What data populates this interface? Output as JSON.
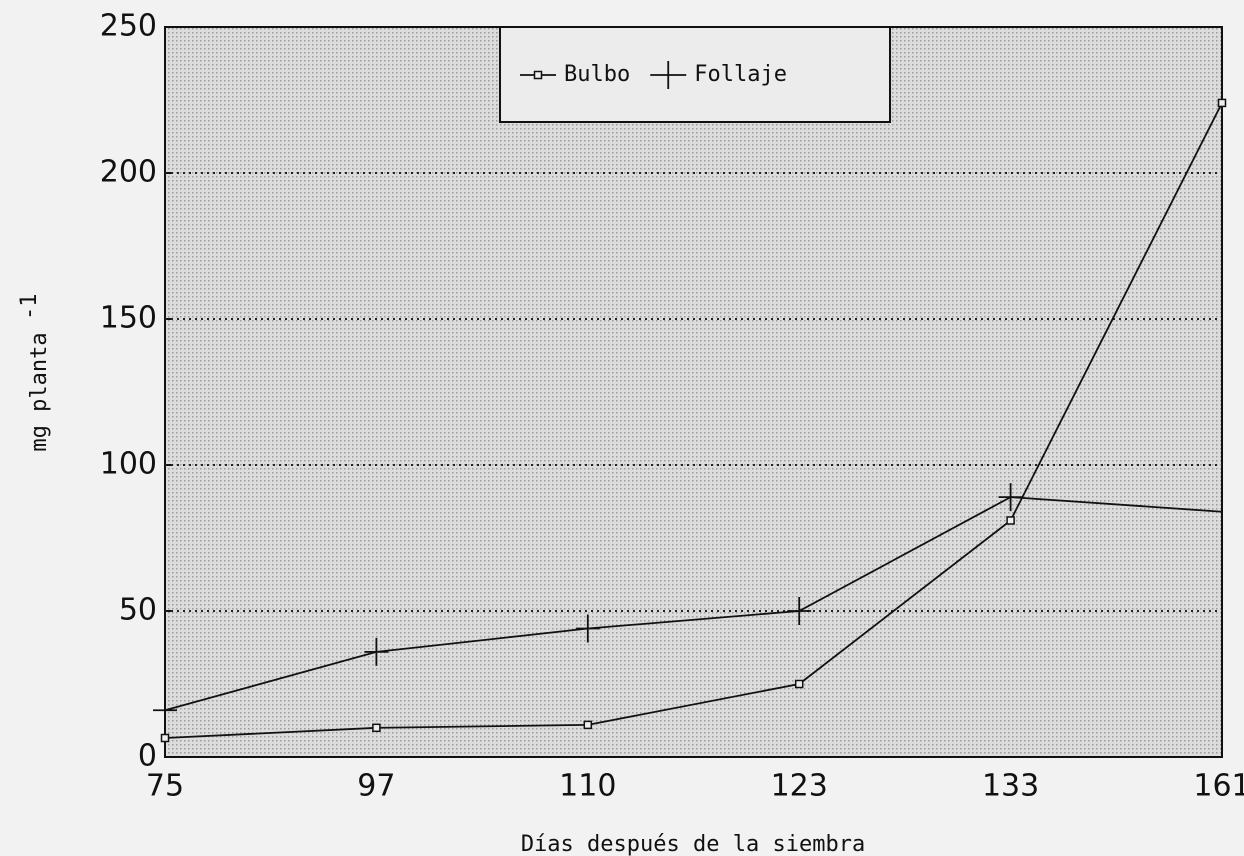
{
  "chart_data": {
    "type": "line",
    "xlabel": "Días después de la siembra",
    "ylabel": "mg planta",
    "ylabel_superscript": "-1",
    "categories": [
      "75",
      "97",
      "110",
      "123",
      "133",
      "161"
    ],
    "series": [
      {
        "name": "Bulbo",
        "color": "#111111",
        "marker": "square",
        "values": [
          6.5,
          10,
          11,
          25,
          81,
          224
        ]
      },
      {
        "name": "Follaje",
        "color": "#111111",
        "marker": "plus",
        "values": [
          16,
          36,
          44,
          50,
          89,
          84
        ]
      }
    ],
    "ylim": [
      0,
      250
    ],
    "yticks": [
      0,
      50,
      100,
      150,
      200,
      250
    ],
    "grid": true,
    "legend": "top"
  }
}
